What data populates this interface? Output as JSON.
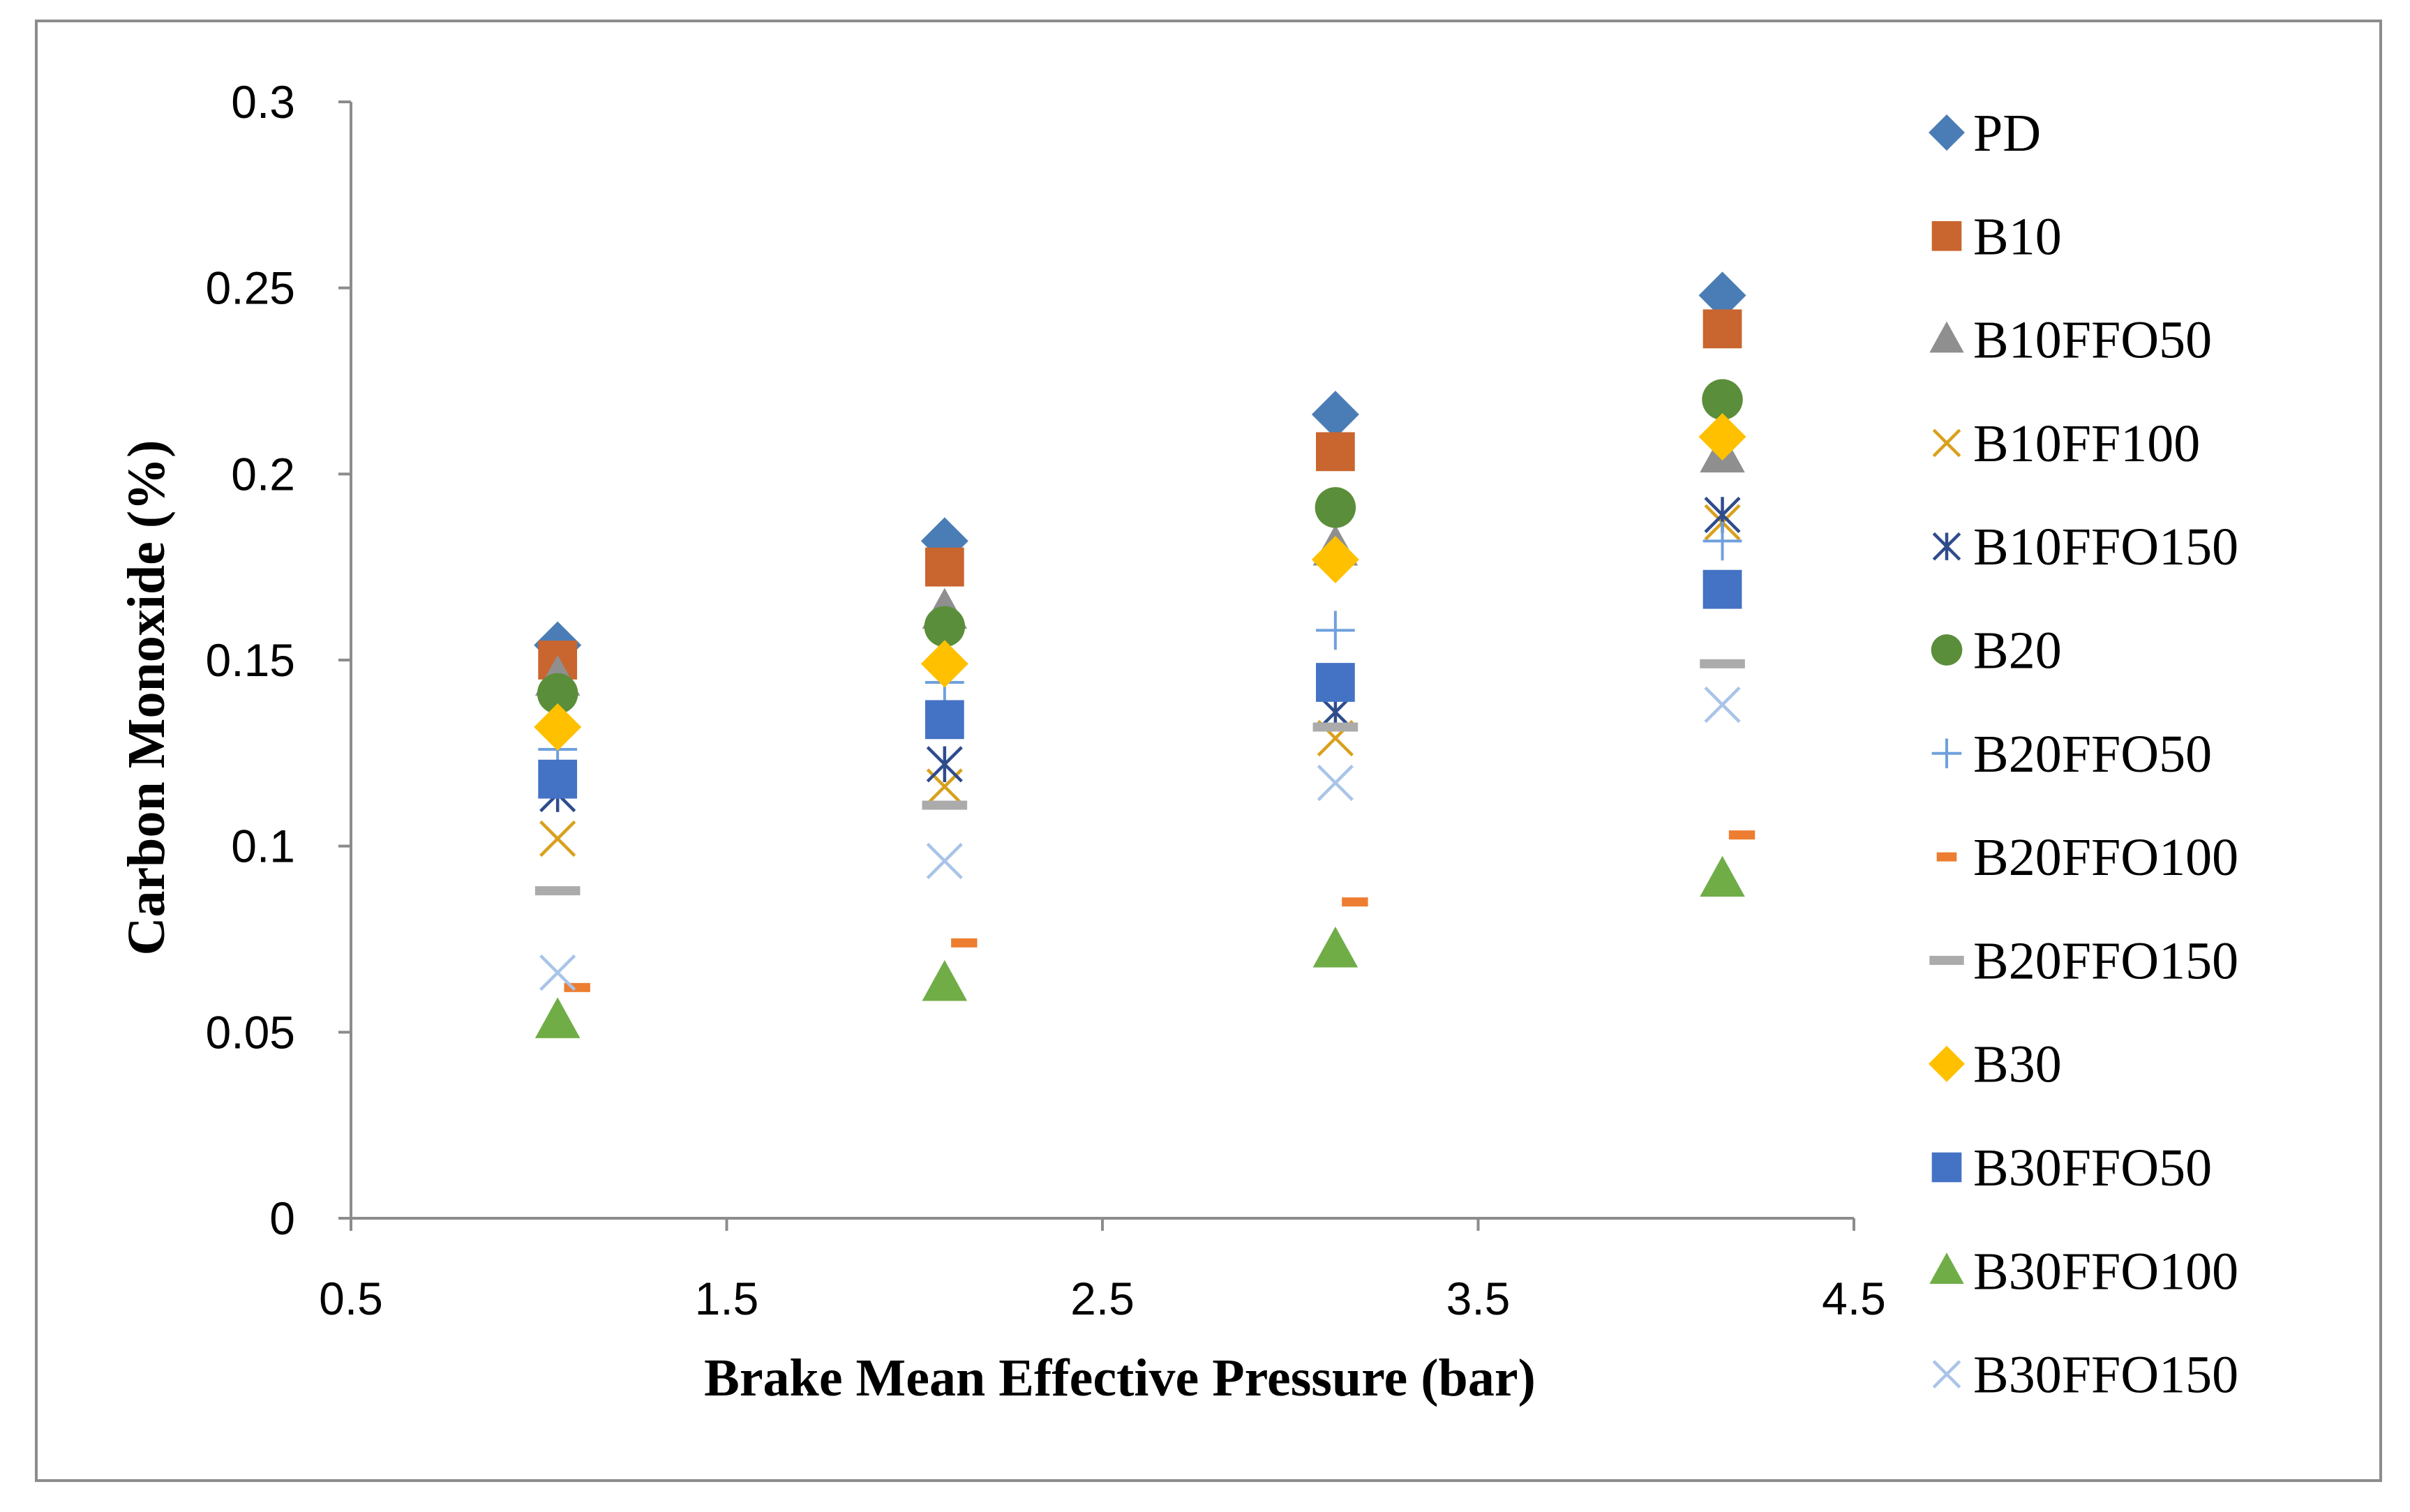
{
  "chart_data": {
    "type": "scatter",
    "title": "",
    "xlabel": "Brake Mean Effective Pressure (bar)",
    "ylabel": "Carbon Monoxide (%)",
    "xlim": [
      0.5,
      4.5
    ],
    "ylim": [
      0,
      0.3
    ],
    "x_ticks": [
      "0.5",
      "1.5",
      "2.5",
      "3.5",
      "4.5"
    ],
    "y_ticks": [
      "0",
      "0.05",
      "0.1",
      "0.15",
      "0.2",
      "0.25",
      "0.3"
    ],
    "grid": false,
    "legend_position": "right",
    "x": [
      1.05,
      2.08,
      3.12,
      4.15
    ],
    "series": [
      {
        "name": "PD",
        "marker": "diamond",
        "color": "#4A7DB5",
        "values": [
          0.154,
          0.182,
          0.216,
          0.248
        ]
      },
      {
        "name": "B10",
        "marker": "square",
        "color": "#C9652E",
        "values": [
          0.15,
          0.175,
          0.206,
          0.239
        ]
      },
      {
        "name": "B10FFO50",
        "marker": "triangle",
        "color": "#8F8F8F",
        "values": [
          0.145,
          0.163,
          0.18,
          0.205
        ]
      },
      {
        "name": "B10FF100",
        "marker": "x",
        "color": "#D9A01C",
        "values": [
          0.102,
          0.116,
          0.129,
          0.187
        ]
      },
      {
        "name": "B10FFO150",
        "marker": "asterisk",
        "color": "#2E4C8C",
        "values": [
          0.114,
          0.122,
          0.136,
          0.189
        ]
      },
      {
        "name": "B20",
        "marker": "circle",
        "color": "#5B8E3A",
        "values": [
          0.141,
          0.159,
          0.191,
          0.22
        ]
      },
      {
        "name": "B20FFO50",
        "marker": "plus",
        "color": "#6FA0DC",
        "values": [
          0.126,
          0.144,
          0.158,
          0.182
        ]
      },
      {
        "name": "B20FFO100",
        "marker": "dash",
        "color": "#ED7D31",
        "values": [
          0.062,
          0.074,
          0.085,
          0.103
        ]
      },
      {
        "name": "B20FFO150",
        "marker": "bar",
        "color": "#ABABAB",
        "values": [
          0.088,
          0.111,
          0.132,
          0.149
        ]
      },
      {
        "name": "B30",
        "marker": "diamond",
        "color": "#FFC000",
        "values": [
          0.132,
          0.149,
          0.177,
          0.21
        ]
      },
      {
        "name": "B30FFO50",
        "marker": "square",
        "color": "#4472C4",
        "values": [
          0.118,
          0.134,
          0.144,
          0.169
        ]
      },
      {
        "name": "B30FFO100",
        "marker": "triangle",
        "color": "#70AD47",
        "values": [
          0.053,
          0.063,
          0.072,
          0.091
        ]
      },
      {
        "name": "B30FFO150",
        "marker": "x",
        "color": "#A9C4E8",
        "values": [
          0.066,
          0.096,
          0.117,
          0.138
        ]
      }
    ]
  }
}
